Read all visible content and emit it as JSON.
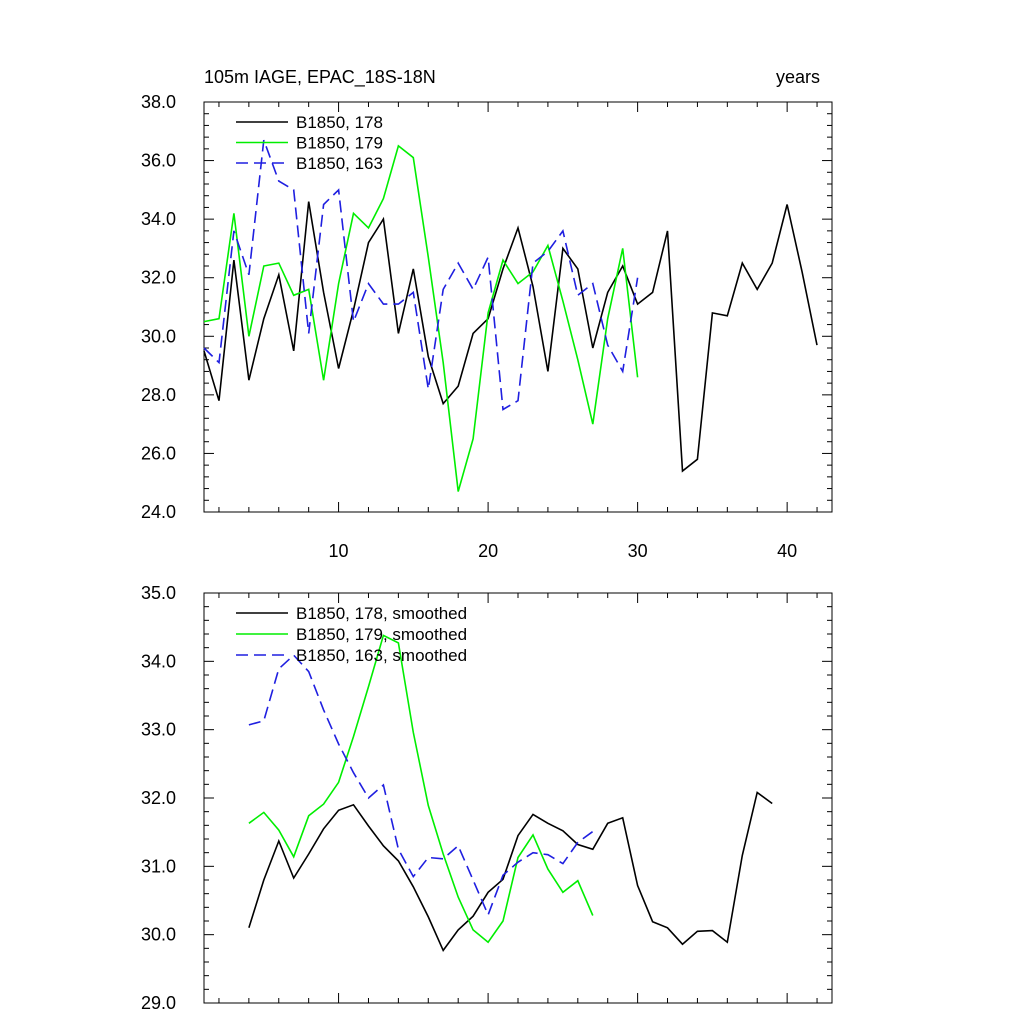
{
  "chart_data": [
    {
      "type": "line",
      "title_left": "105m IAGE, EPAC_18S-18N",
      "title_right": "years",
      "xlim": [
        1,
        43
      ],
      "ylim": [
        24,
        38
      ],
      "xticks": [
        10,
        20,
        30,
        40
      ],
      "xtick_labels": [
        "10",
        "20",
        "30",
        "40"
      ],
      "yticks": [
        24,
        26,
        28,
        30,
        32,
        34,
        36,
        38
      ],
      "ytick_labels": [
        "24.0",
        "26.0",
        "28.0",
        "30.0",
        "32.0",
        "34.0",
        "36.0",
        "38.0"
      ],
      "grid": false,
      "legend_position": "top-left",
      "series": [
        {
          "name": "B1850, 178",
          "color": "#000000",
          "dash": "solid",
          "x": [
            1,
            2,
            3,
            4,
            5,
            6,
            7,
            8,
            9,
            10,
            11,
            12,
            13,
            14,
            15,
            16,
            17,
            18,
            19,
            20,
            21,
            22,
            23,
            24,
            25,
            26,
            27,
            28,
            29,
            30,
            31,
            32,
            33,
            34,
            35,
            36,
            37,
            38,
            39,
            40,
            41,
            42
          ],
          "y": [
            29.5,
            27.8,
            32.6,
            28.5,
            30.6,
            32.1,
            29.5,
            34.6,
            31.5,
            28.9,
            30.9,
            33.2,
            34.0,
            30.1,
            32.3,
            29.3,
            27.7,
            28.3,
            30.1,
            30.6,
            32.3,
            33.7,
            31.7,
            28.8,
            33.0,
            32.3,
            29.6,
            31.5,
            32.4,
            31.1,
            31.5,
            33.6,
            25.4,
            25.8,
            30.8,
            30.7,
            32.5,
            31.6,
            32.5,
            34.5,
            32.2,
            29.7
          ]
        },
        {
          "name": "B1850, 179",
          "color": "#00ee00",
          "dash": "solid",
          "x": [
            1,
            2,
            3,
            4,
            5,
            6,
            7,
            8,
            9,
            10,
            11,
            12,
            13,
            14,
            15,
            16,
            17,
            18,
            19,
            20,
            21,
            22,
            23,
            24,
            25,
            26,
            27,
            28,
            29,
            30
          ],
          "y": [
            30.5,
            30.6,
            34.2,
            30.0,
            32.4,
            32.5,
            31.4,
            31.6,
            28.5,
            31.8,
            34.2,
            33.7,
            34.7,
            36.5,
            36.1,
            32.7,
            29.1,
            24.7,
            26.5,
            30.8,
            32.6,
            31.8,
            32.2,
            33.1,
            31.2,
            29.2,
            27.0,
            30.6,
            33.0,
            28.6
          ]
        },
        {
          "name": "B1850, 163",
          "color": "#1f1fe0",
          "dash": "dashed",
          "x": [
            1,
            2,
            3,
            4,
            5,
            6,
            7,
            8,
            9,
            10,
            11,
            12,
            13,
            14,
            15,
            16,
            17,
            18,
            19,
            20,
            21,
            22,
            23,
            24,
            25,
            26,
            27,
            28,
            29,
            30
          ],
          "y": [
            29.6,
            29.1,
            33.6,
            32.1,
            36.7,
            35.3,
            35.0,
            30.1,
            34.5,
            35.0,
            30.5,
            31.8,
            31.1,
            31.1,
            31.5,
            28.2,
            31.6,
            32.5,
            31.6,
            32.7,
            27.5,
            27.8,
            32.5,
            32.9,
            33.6,
            31.4,
            31.8,
            29.7,
            28.8,
            32.0
          ]
        }
      ]
    },
    {
      "type": "line",
      "xlim": [
        1,
        43
      ],
      "ylim": [
        29,
        35
      ],
      "xticks": [
        10,
        20,
        30,
        40
      ],
      "yticks": [
        29,
        30,
        31,
        32,
        33,
        34,
        35
      ],
      "ytick_labels": [
        "29.0",
        "30.0",
        "31.0",
        "32.0",
        "33.0",
        "34.0",
        "35.0"
      ],
      "grid": false,
      "legend_position": "top-left",
      "series": [
        {
          "name": "B1850, 178, smoothed",
          "color": "#000000",
          "dash": "solid",
          "x": [
            4,
            5,
            6,
            7,
            8,
            9,
            10,
            11,
            12,
            13,
            14,
            15,
            16,
            17,
            18,
            19,
            20,
            21,
            22,
            23,
            24,
            25,
            26,
            27,
            28,
            29,
            30,
            31,
            32,
            33,
            34,
            35,
            36,
            37,
            38,
            39
          ],
          "y": [
            30.1,
            30.8,
            31.37,
            30.83,
            31.18,
            31.55,
            31.82,
            31.9,
            31.59,
            31.3,
            31.08,
            30.7,
            30.26,
            29.77,
            30.07,
            30.27,
            30.62,
            30.81,
            31.45,
            31.76,
            31.63,
            31.52,
            31.32,
            31.25,
            31.63,
            31.71,
            30.72,
            30.19,
            30.1,
            29.86,
            30.05,
            30.06,
            29.89,
            31.16,
            32.08,
            31.92
          ]
        },
        {
          "name": "B1850, 179, smoothed",
          "color": "#00ee00",
          "dash": "solid",
          "x": [
            4,
            5,
            6,
            7,
            8,
            9,
            10,
            11,
            12,
            13,
            14,
            15,
            16,
            17,
            18,
            19,
            20,
            21,
            22,
            23,
            24,
            25,
            26,
            27
          ],
          "y": [
            31.63,
            31.79,
            31.53,
            31.14,
            31.74,
            31.91,
            32.23,
            32.9,
            33.63,
            34.38,
            34.27,
            32.96,
            31.89,
            31.18,
            30.55,
            30.07,
            29.89,
            30.2,
            31.13,
            31.46,
            30.96,
            30.62,
            30.79,
            30.28
          ]
        },
        {
          "name": "B1850, 163, smoothed",
          "color": "#1f1fe0",
          "dash": "dashed",
          "x": [
            4,
            5,
            6,
            7,
            8,
            9,
            10,
            11,
            12,
            13,
            14,
            15,
            16,
            17,
            18,
            19,
            20,
            21,
            22,
            23,
            24,
            25,
            26,
            27
          ],
          "y": [
            33.07,
            33.13,
            33.89,
            34.09,
            33.85,
            33.29,
            32.79,
            32.37,
            32.0,
            32.19,
            31.25,
            30.85,
            31.13,
            31.11,
            31.3,
            30.8,
            30.29,
            30.87,
            31.06,
            31.2,
            31.17,
            31.04,
            31.35,
            31.51
          ]
        }
      ]
    }
  ]
}
